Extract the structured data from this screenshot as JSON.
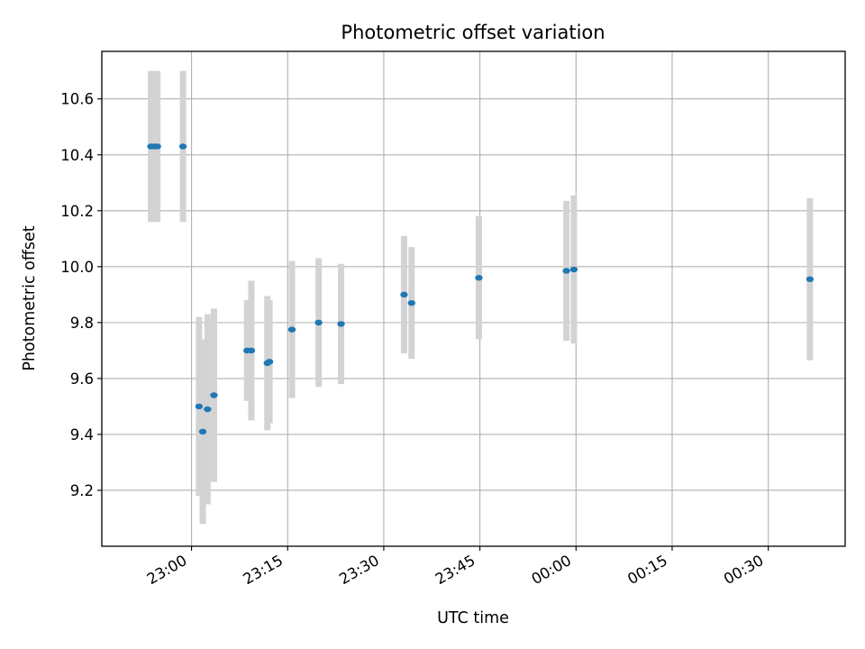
{
  "chart_data": {
    "type": "scatter",
    "title": "Photometric offset variation",
    "xlabel": "UTC time",
    "ylabel": "Photometric offset",
    "x_axis_kind": "time (HH:MM)",
    "xlim": [
      "22:46",
      "00:42"
    ],
    "ylim": [
      9.0,
      10.77
    ],
    "xticks": [
      "23:00",
      "23:15",
      "23:30",
      "23:45",
      "00:00",
      "00:15",
      "00:30"
    ],
    "yticks": [
      "9.2",
      "9.4",
      "9.6",
      "9.8",
      "10.0",
      "10.2",
      "10.4",
      "10.6"
    ],
    "grid": true,
    "legend": "none",
    "colors": {
      "point": "#1f77b4",
      "errorbar": "#d3d3d3",
      "grid": "#b0b0b0"
    },
    "series": [
      {
        "points": [
          {
            "time": "22:53:40",
            "y": 10.43,
            "yerr": 0.27
          },
          {
            "time": "22:54:10",
            "y": 10.43,
            "yerr": 0.27
          },
          {
            "time": "22:54:40",
            "y": 10.43,
            "yerr": 0.27
          },
          {
            "time": "22:58:40",
            "y": 10.43,
            "yerr": 0.27
          },
          {
            "time": "23:01:10",
            "y": 9.5,
            "yerr": 0.32
          },
          {
            "time": "23:01:45",
            "y": 9.41,
            "yerr": 0.33
          },
          {
            "time": "23:02:30",
            "y": 9.49,
            "yerr": 0.34
          },
          {
            "time": "23:03:30",
            "y": 9.54,
            "yerr": 0.31
          },
          {
            "time": "23:08:40",
            "y": 9.7,
            "yerr": 0.18
          },
          {
            "time": "23:09:20",
            "y": 9.7,
            "yerr": 0.25
          },
          {
            "time": "23:11:50",
            "y": 9.655,
            "yerr": 0.24
          },
          {
            "time": "23:12:10",
            "y": 9.66,
            "yerr": 0.22
          },
          {
            "time": "23:15:40",
            "y": 9.775,
            "yerr": 0.245
          },
          {
            "time": "23:19:50",
            "y": 9.8,
            "yerr": 0.23
          },
          {
            "time": "23:23:20",
            "y": 9.795,
            "yerr": 0.215
          },
          {
            "time": "23:33:10",
            "y": 9.9,
            "yerr": 0.21
          },
          {
            "time": "23:34:20",
            "y": 9.87,
            "yerr": 0.2
          },
          {
            "time": "23:44:50",
            "y": 9.96,
            "yerr": 0.22
          },
          {
            "time": "23:58:30",
            "y": 9.985,
            "yerr": 0.25
          },
          {
            "time": "23:59:40",
            "y": 9.99,
            "yerr": 0.265
          },
          {
            "time": "00:36:30",
            "y": 9.955,
            "yerr": 0.29
          }
        ]
      }
    ]
  }
}
